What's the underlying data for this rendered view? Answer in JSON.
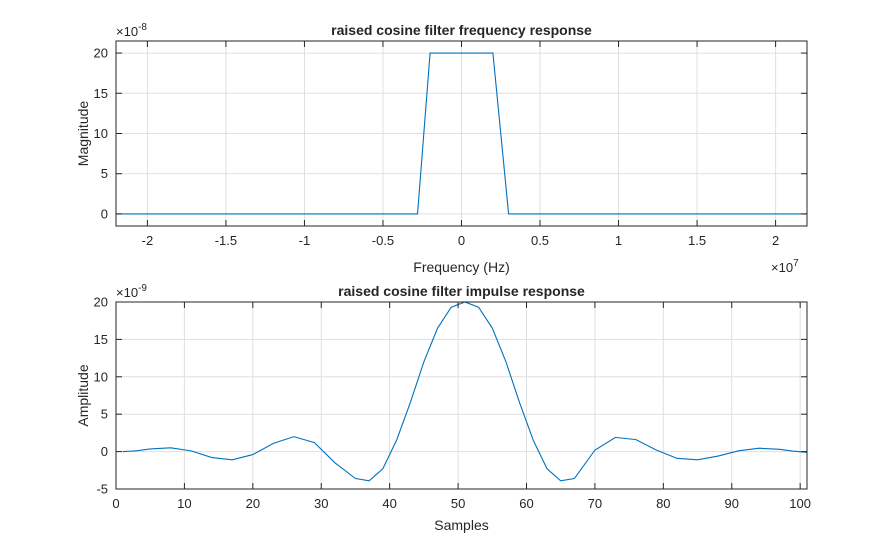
{
  "chart_data": [
    {
      "type": "line",
      "title": "raised cosine filter frequency response",
      "xlabel": "Frequency (Hz)",
      "ylabel": "Magnitude",
      "x_multiplier": "×10",
      "x_exponent": "7",
      "y_multiplier": "×10",
      "y_exponent": "-8",
      "xlim": [
        -2.2,
        2.2
      ],
      "ylim": [
        -1.5,
        21.5
      ],
      "xticks": [
        -2,
        -1.5,
        -1,
        -0.5,
        0,
        0.5,
        1,
        1.5,
        2
      ],
      "xtick_labels": [
        "-2",
        "-1.5",
        "-1",
        "-0.5",
        "0",
        "0.5",
        "1",
        "1.5",
        "2"
      ],
      "yticks": [
        0,
        5,
        10,
        15,
        20
      ],
      "ytick_labels": [
        "0",
        "5",
        "10",
        "15",
        "20"
      ],
      "grid": true,
      "series": [
        {
          "color": "#0072bd",
          "x": [
            -2.2,
            -0.28,
            -0.2,
            0.2,
            0.3,
            2.2
          ],
          "y": [
            0,
            0,
            20,
            20,
            0,
            0
          ]
        }
      ]
    },
    {
      "type": "line",
      "title": "raised cosine filter impulse response",
      "xlabel": "Samples",
      "ylabel": "Amplitude",
      "y_multiplier": "×10",
      "y_exponent": "-9",
      "xlim": [
        0,
        101
      ],
      "ylim": [
        -5,
        20
      ],
      "xticks": [
        0,
        10,
        20,
        30,
        40,
        50,
        60,
        70,
        80,
        90,
        100
      ],
      "xtick_labels": [
        "0",
        "10",
        "20",
        "30",
        "40",
        "50",
        "60",
        "70",
        "80",
        "90",
        "100"
      ],
      "yticks": [
        -5,
        0,
        5,
        10,
        15,
        20
      ],
      "ytick_labels": [
        "-5",
        "0",
        "5",
        "10",
        "15",
        "20"
      ],
      "grid": true,
      "series": [
        {
          "color": "#0072bd",
          "x": [
            1,
            3,
            5,
            8,
            11,
            14,
            17,
            20,
            23,
            26,
            29,
            32,
            35,
            37,
            39,
            41,
            43,
            45,
            47,
            49,
            51,
            53,
            55,
            57,
            59,
            61,
            63,
            65,
            67,
            70,
            73,
            76,
            79,
            82,
            85,
            88,
            91,
            94,
            97,
            99,
            101
          ],
          "y": [
            0,
            0.1,
            0.35,
            0.5,
            0.1,
            -0.8,
            -1.1,
            -0.4,
            1.1,
            2.0,
            1.2,
            -1.5,
            -3.6,
            -3.9,
            -2.3,
            1.5,
            6.5,
            12.0,
            16.5,
            19.3,
            20.0,
            19.3,
            16.5,
            12.0,
            6.5,
            1.5,
            -2.3,
            -3.9,
            -3.6,
            0.2,
            1.9,
            1.6,
            0.2,
            -0.9,
            -1.1,
            -0.6,
            0.1,
            0.45,
            0.3,
            0.05,
            -0.1
          ]
        }
      ]
    }
  ]
}
